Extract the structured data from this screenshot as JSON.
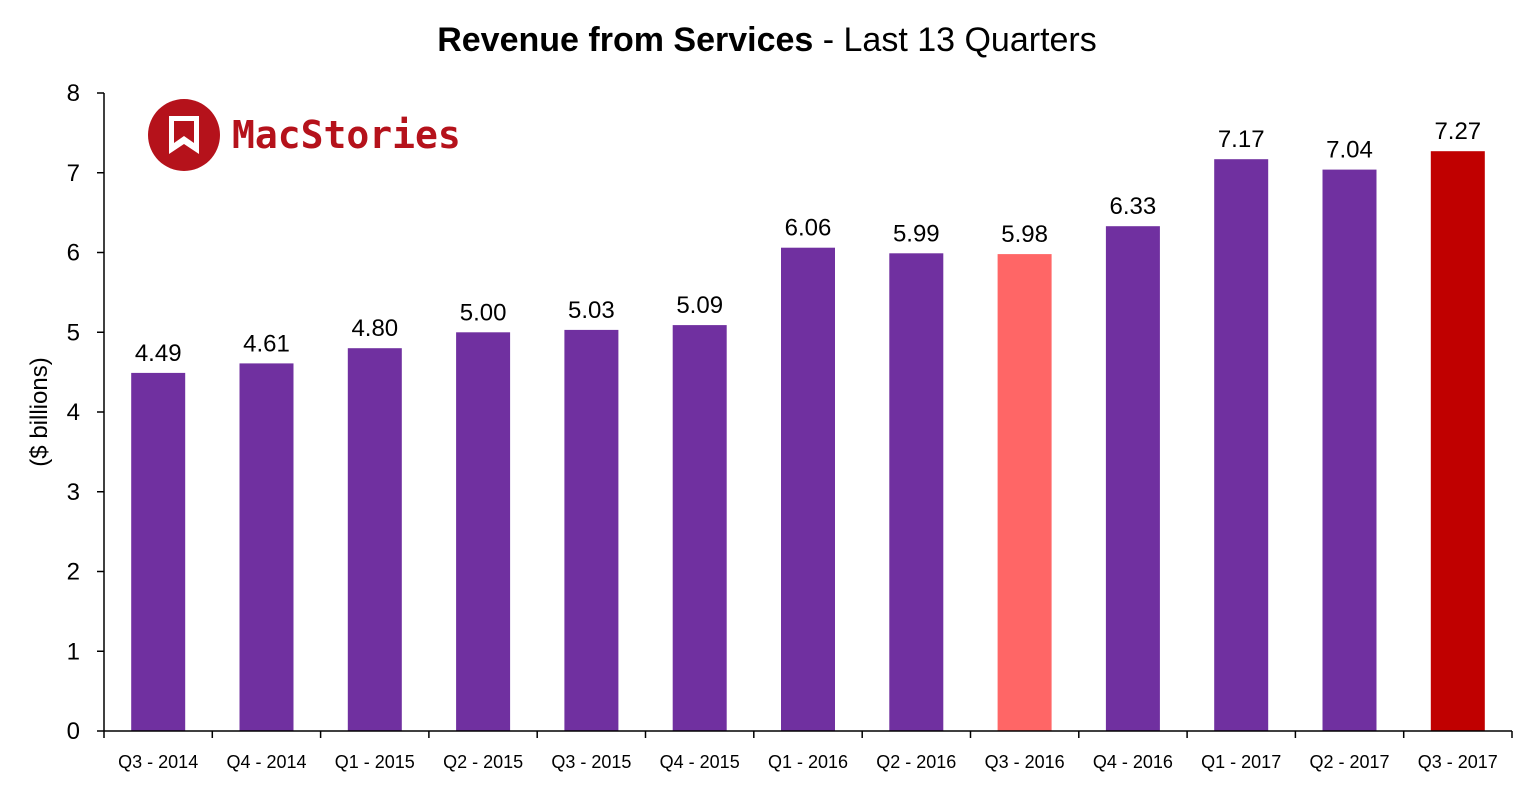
{
  "chart_data": {
    "type": "bar",
    "title_bold": "Revenue from Services",
    "title_rest": " - Last 13 Quarters",
    "ylabel": "($ billions)",
    "xlabel": "",
    "ylim": [
      0,
      8
    ],
    "yticks": [
      0,
      1,
      2,
      3,
      4,
      5,
      6,
      7,
      8
    ],
    "categories": [
      "Q3 - 2014",
      "Q4 - 2014",
      "Q1 - 2015",
      "Q2 - 2015",
      "Q3 - 2015",
      "Q4 - 2015",
      "Q1 - 2016",
      "Q2 - 2016",
      "Q3 - 2016",
      "Q4 - 2016",
      "Q1 - 2017",
      "Q2 - 2017",
      "Q3 - 2017"
    ],
    "values": [
      4.49,
      4.61,
      4.8,
      5.0,
      5.03,
      5.09,
      6.06,
      5.99,
      5.98,
      6.33,
      7.17,
      7.04,
      7.27
    ],
    "value_labels": [
      "4.49",
      "4.61",
      "4.80",
      "5.00",
      "5.03",
      "5.09",
      "6.06",
      "5.99",
      "5.98",
      "6.33",
      "7.17",
      "7.04",
      "7.27"
    ],
    "bar_colors": [
      "#7030a0",
      "#7030a0",
      "#7030a0",
      "#7030a0",
      "#7030a0",
      "#7030a0",
      "#7030a0",
      "#7030a0",
      "#ff6666",
      "#7030a0",
      "#7030a0",
      "#7030a0",
      "#c00000"
    ],
    "grid": false,
    "legend": "none"
  },
  "logo": {
    "text": "MacStories",
    "color": "#b5121b",
    "icon": "bookmark-icon"
  }
}
